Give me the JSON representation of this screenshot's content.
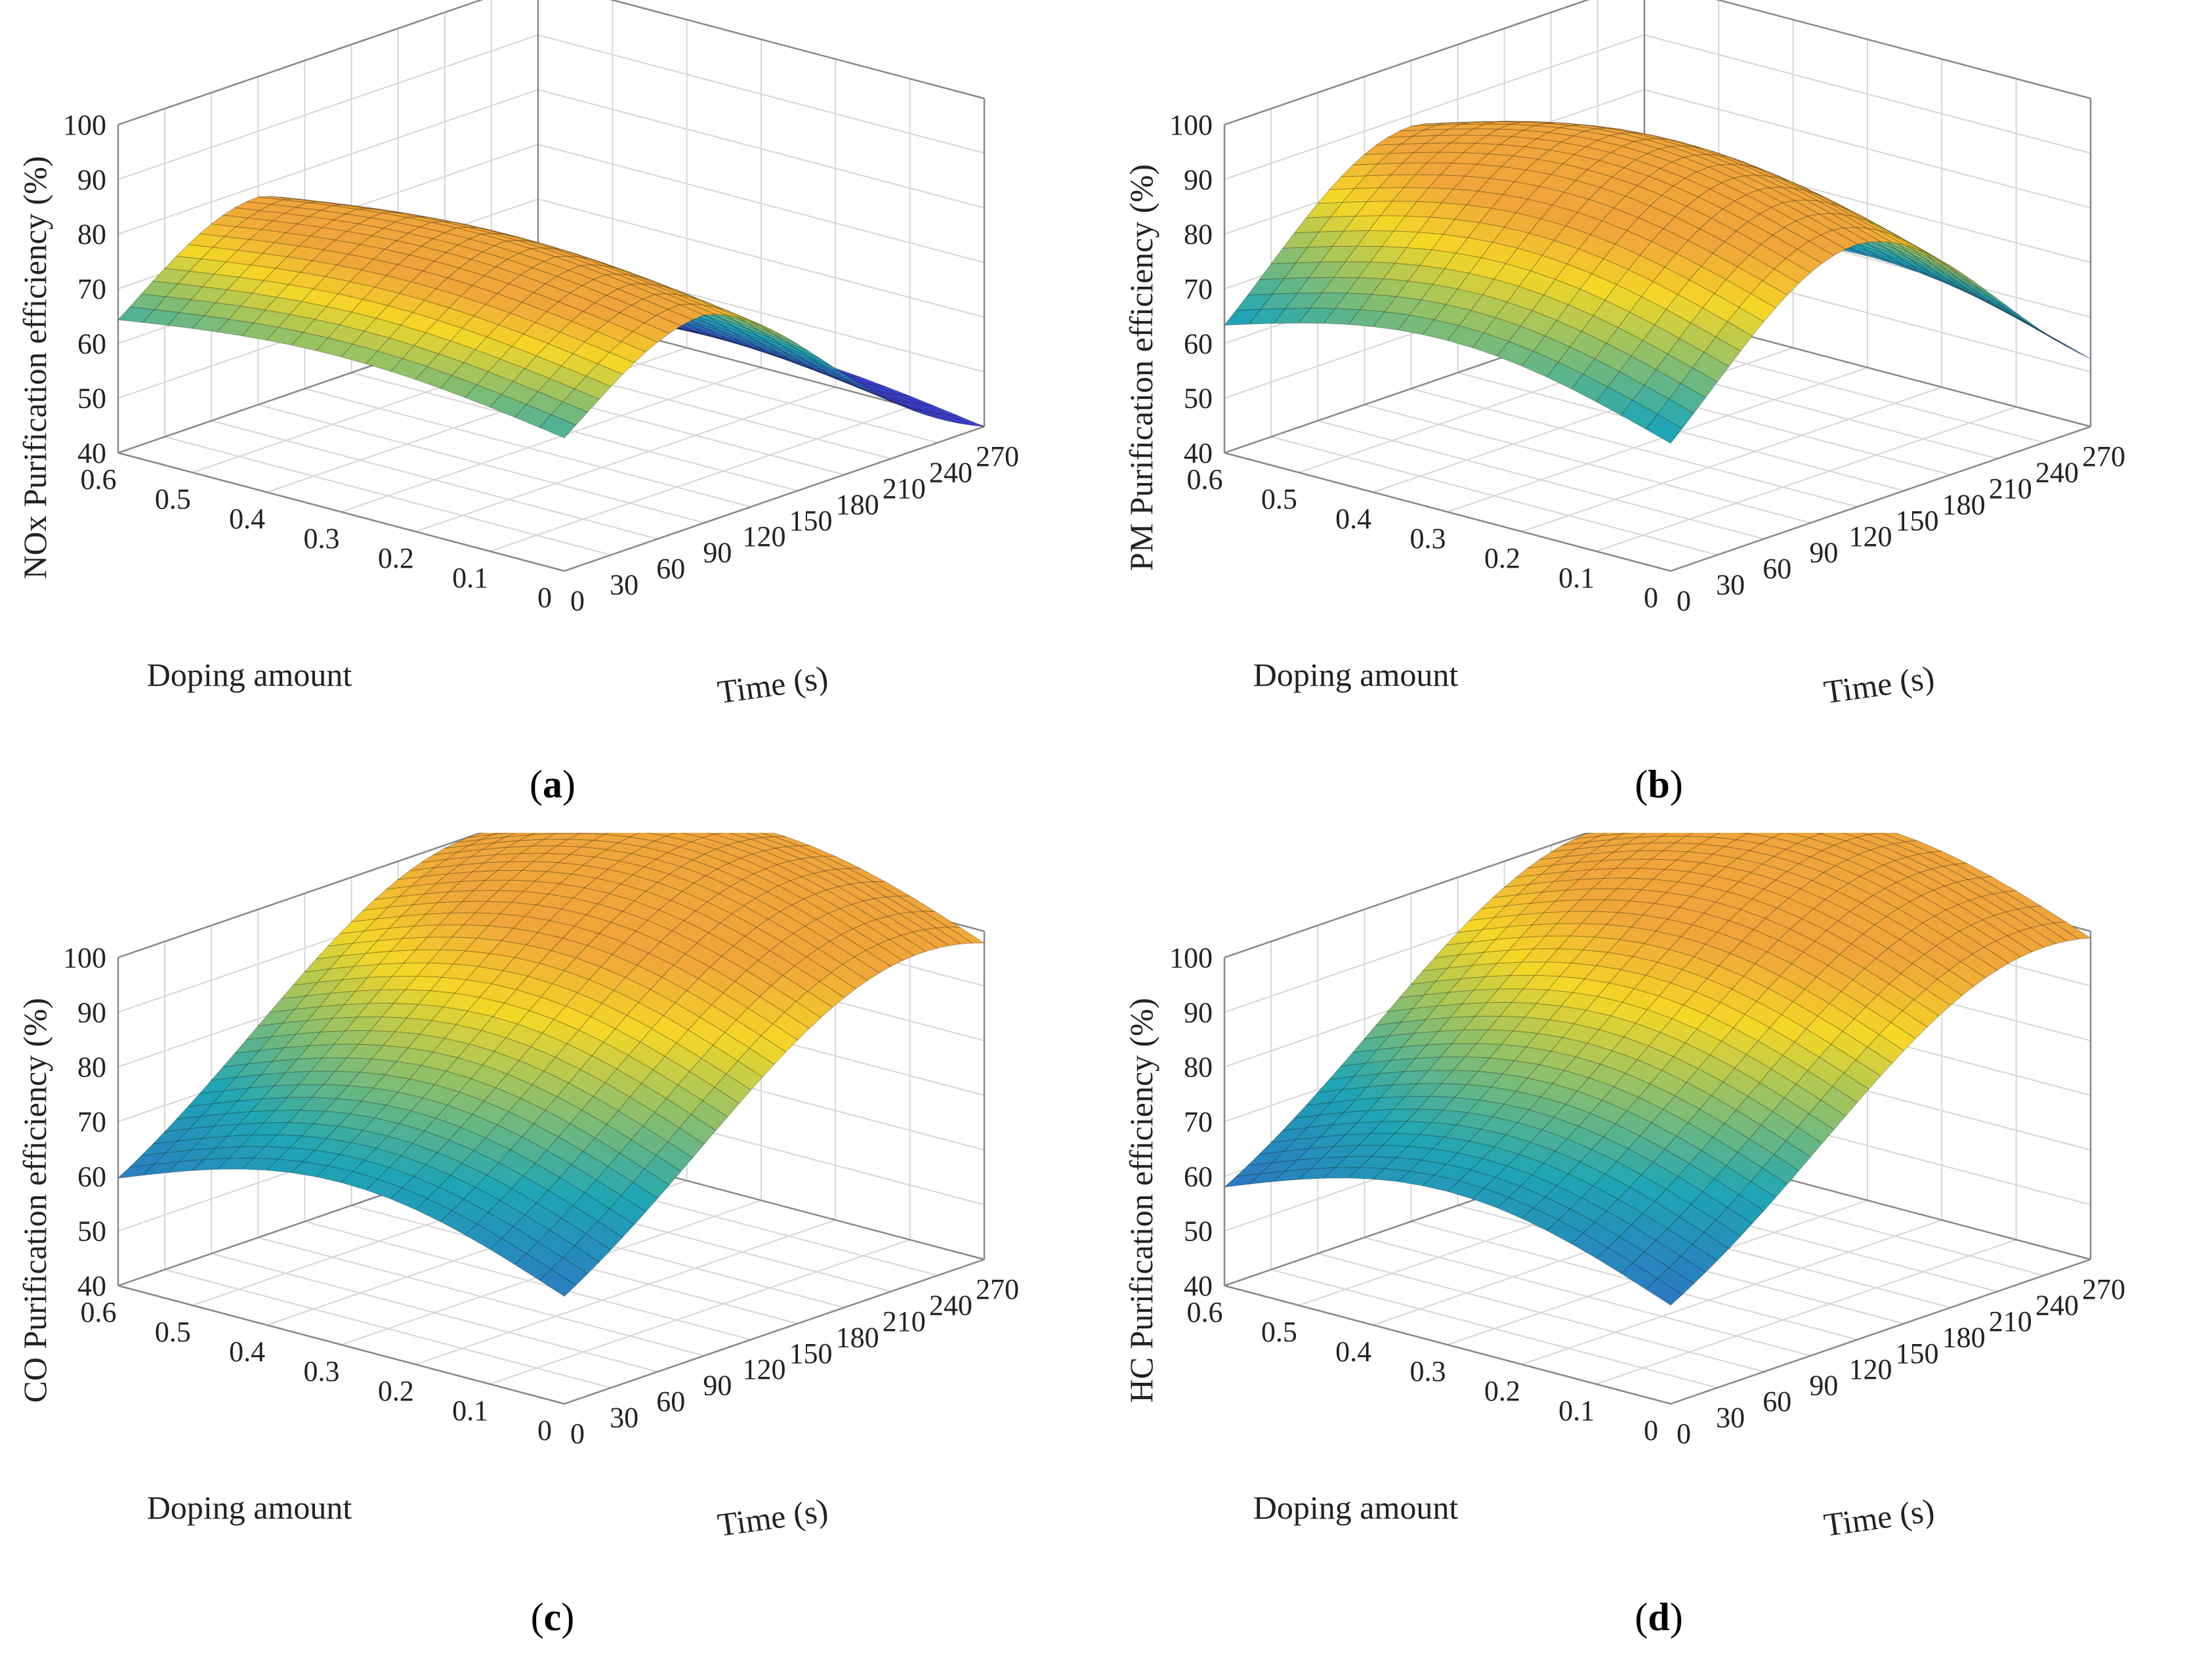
{
  "chart_data": [
    {
      "type": "surface3d",
      "panel": "a",
      "caption_letter": "a",
      "zlabel": "NOx Purification efficiency (%)",
      "xlabel": "Time (s)",
      "ylabel": "Doping amount",
      "x_ticks": [
        "0",
        "30",
        "60",
        "90",
        "120",
        "150",
        "180",
        "210",
        "240",
        "270"
      ],
      "y_ticks": [
        "0",
        "0.1",
        "0.2",
        "0.3",
        "0.4",
        "0.5",
        "0.6"
      ],
      "z_ticks": [
        "40",
        "50",
        "60",
        "70",
        "80",
        "90",
        "100"
      ],
      "xlim": [
        0,
        270
      ],
      "ylim": [
        0,
        0.6
      ],
      "zlim": [
        40,
        100
      ],
      "surface": {
        "base": 50,
        "peak": 78,
        "t_peak": 90,
        "t_width": 110,
        "dope_gain": 4,
        "late_drop": 12
      },
      "colors": {
        "low": "#3b3fd0",
        "mid": "#1fa6b5",
        "high": "#f5d726",
        "peak": "#f0a53a"
      }
    },
    {
      "type": "surface3d",
      "panel": "b",
      "caption_letter": "b",
      "zlabel": "PM Purification efficiency (%)",
      "xlabel": "Time (s)",
      "ylabel": "Doping amount",
      "x_ticks": [
        "0",
        "30",
        "60",
        "90",
        "120",
        "150",
        "180",
        "210",
        "240",
        "270"
      ],
      "y_ticks": [
        "0",
        "0.1",
        "0.2",
        "0.3",
        "0.4",
        "0.5",
        "0.6"
      ],
      "z_ticks": [
        "40",
        "50",
        "60",
        "70",
        "80",
        "90",
        "100"
      ],
      "xlim": [
        0,
        270
      ],
      "ylim": [
        0,
        0.6
      ],
      "zlim": [
        40,
        100
      ],
      "surface": {
        "base": 45,
        "peak": 88,
        "t_peak": 120,
        "t_width": 130,
        "dope_gain": 8,
        "late_drop": 4
      },
      "colors": {
        "low": "#3b3fd0",
        "mid": "#1fa6b5",
        "high": "#f5d726",
        "peak": "#f0a53a"
      }
    },
    {
      "type": "surface3d",
      "panel": "c",
      "caption_letter": "c",
      "zlabel": "CO Purification efficiency (%)",
      "xlabel": "Time (s)",
      "ylabel": "Doping amount",
      "x_ticks": [
        "0",
        "30",
        "60",
        "90",
        "120",
        "150",
        "180",
        "210",
        "240",
        "270"
      ],
      "y_ticks": [
        "0",
        "0.1",
        "0.2",
        "0.3",
        "0.4",
        "0.5",
        "0.6"
      ],
      "z_ticks": [
        "40",
        "50",
        "60",
        "70",
        "80",
        "90",
        "100"
      ],
      "xlim": [
        0,
        270
      ],
      "ylim": [
        0,
        0.6
      ],
      "zlim": [
        40,
        100
      ],
      "surface": {
        "base": 45,
        "peak": 100,
        "t_peak": 230,
        "t_width": 200,
        "dope_gain": 10,
        "late_drop": 0
      },
      "colors": {
        "low": "#3b3fd0",
        "mid": "#1fa6b5",
        "high": "#f5d726",
        "peak": "#f0a53a"
      }
    },
    {
      "type": "surface3d",
      "panel": "d",
      "caption_letter": "d",
      "zlabel": "HC Purification efficiency (%)",
      "xlabel": "Time (s)",
      "ylabel": "Doping amount",
      "x_ticks": [
        "0",
        "30",
        "60",
        "90",
        "120",
        "150",
        "180",
        "210",
        "240",
        "270"
      ],
      "y_ticks": [
        "0",
        "0.1",
        "0.2",
        "0.3",
        "0.4",
        "0.5",
        "0.6"
      ],
      "z_ticks": [
        "40",
        "50",
        "60",
        "70",
        "80",
        "90",
        "100"
      ],
      "xlim": [
        0,
        270
      ],
      "ylim": [
        0,
        0.6
      ],
      "zlim": [
        40,
        100
      ],
      "surface": {
        "base": 45,
        "peak": 100,
        "t_peak": 240,
        "t_width": 200,
        "dope_gain": 10,
        "late_drop": 0
      },
      "colors": {
        "low": "#3b3fd0",
        "mid": "#1fa6b5",
        "high": "#f5d726",
        "peak": "#f0a53a"
      }
    }
  ]
}
